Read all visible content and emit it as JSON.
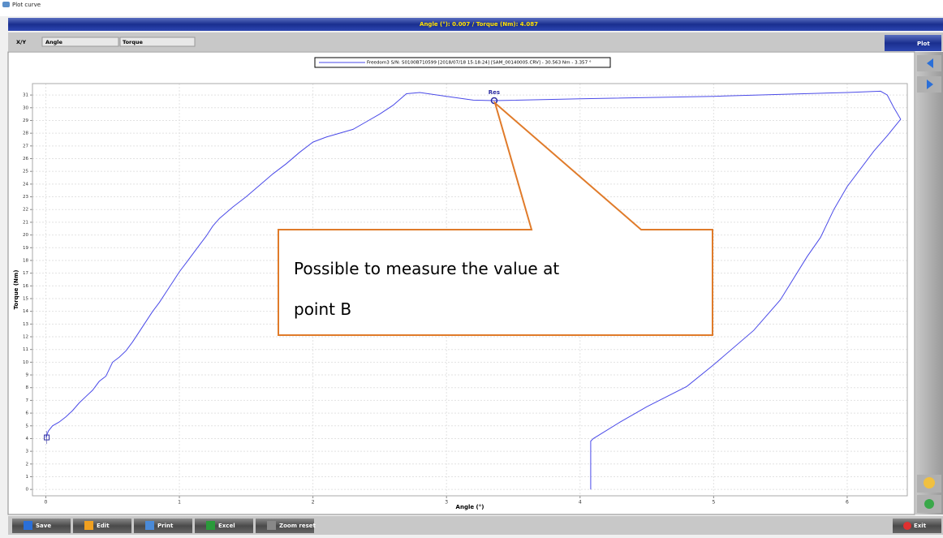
{
  "window": {
    "title": "Plot curve"
  },
  "readout": "Angle (°): 0.007 / Torque (Nm): 4.087",
  "toolbar": {
    "label": "X/Y",
    "x_select": "Angle",
    "y_select": "Torque",
    "plot_button": "Plot"
  },
  "chart_data": {
    "type": "line",
    "x_label": "Angle (°)",
    "y_label": "Torque (Nm)",
    "xlim": [
      -0.1,
      6.45
    ],
    "ylim": [
      -0.5,
      31.9
    ],
    "xticks": [
      0,
      1,
      2,
      3,
      4,
      5,
      6
    ],
    "yticks": [
      0,
      1,
      2,
      3,
      4,
      5,
      6,
      7,
      8,
      9,
      10,
      11,
      12,
      13,
      14,
      15,
      16,
      17,
      18,
      19,
      20,
      21,
      22,
      23,
      24,
      25,
      26,
      27,
      28,
      29,
      30,
      31
    ],
    "grid": true,
    "series": [
      {
        "name": "Freedom3 S/N: S0100B710599 [2018/07/18 15:18:24] [SAM_00140005.CRV] - 30.563 Nm - 3.357 °",
        "color": "#4a4ae8",
        "x": [
          0,
          0.02,
          0.05,
          0.1,
          0.15,
          0.2,
          0.25,
          0.3,
          0.35,
          0.4,
          0.45,
          0.5,
          0.55,
          0.6,
          0.65,
          0.7,
          0.75,
          0.8,
          0.85,
          0.9,
          0.95,
          1.0,
          1.05,
          1.1,
          1.15,
          1.2,
          1.25,
          1.3,
          1.4,
          1.5,
          1.6,
          1.7,
          1.8,
          1.9,
          2.0,
          2.1,
          2.3,
          2.4,
          2.5,
          2.6,
          2.7,
          2.8,
          3.0,
          3.2,
          3.357,
          4.0,
          5.0,
          6.0,
          6.25,
          6.3,
          6.35,
          6.4,
          6.3,
          6.2,
          6.0,
          5.9,
          5.8,
          5.7,
          5.5,
          5.3,
          5.0,
          4.8,
          4.5,
          4.3,
          4.1,
          4.08,
          4.08
        ],
        "values": [
          4.1,
          4.6,
          5.0,
          5.3,
          5.7,
          6.2,
          6.8,
          7.3,
          7.8,
          8.5,
          8.9,
          10.0,
          10.4,
          10.9,
          11.6,
          12.4,
          13.2,
          14.0,
          14.7,
          15.5,
          16.3,
          17.1,
          17.8,
          18.5,
          19.2,
          19.9,
          20.7,
          21.3,
          22.2,
          23.0,
          23.9,
          24.8,
          25.6,
          26.5,
          27.3,
          27.7,
          28.3,
          28.9,
          29.5,
          30.2,
          31.1,
          31.2,
          30.9,
          30.6,
          30.56,
          30.7,
          30.9,
          31.2,
          31.3,
          31.0,
          30.0,
          29.1,
          27.8,
          26.6,
          23.8,
          22.0,
          19.8,
          18.3,
          14.9,
          12.5,
          9.8,
          8.1,
          6.5,
          5.3,
          4.0,
          3.8,
          0
        ]
      }
    ],
    "markers": [
      {
        "label": "Res",
        "x": 3.357,
        "y": 30.563
      }
    ],
    "cursor": {
      "x": 0.007,
      "y": 4.087
    }
  },
  "callout": "Possible to measure the value at point B",
  "buttons": [
    "Save",
    "Edit",
    "Print",
    "Excel",
    "Zoom reset"
  ],
  "exit_button": "Exit"
}
